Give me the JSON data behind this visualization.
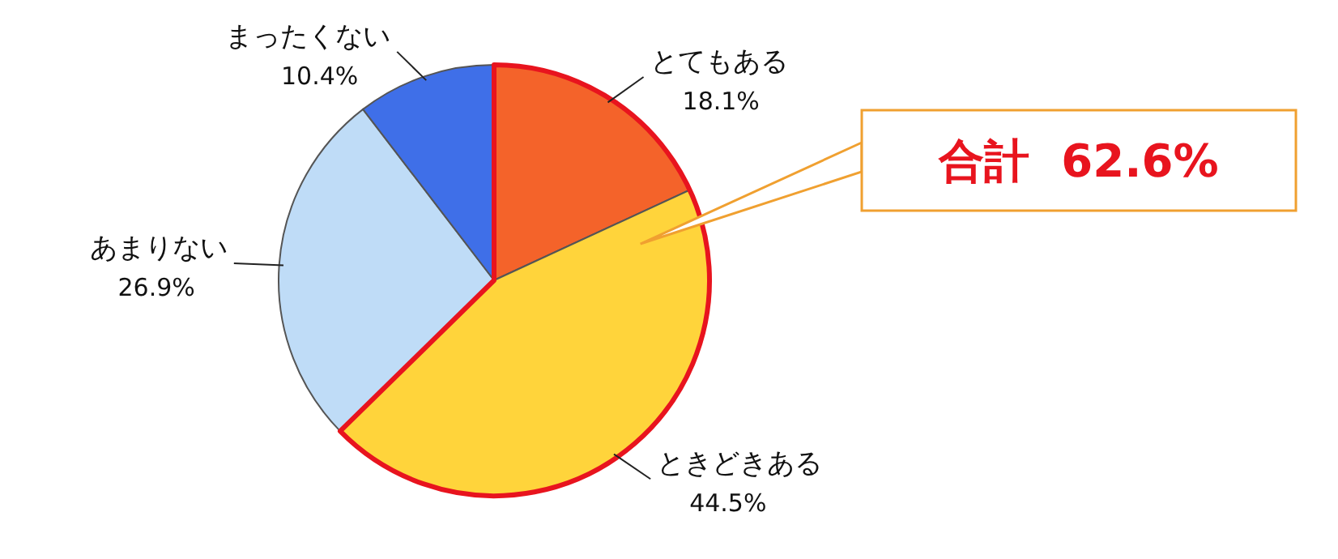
{
  "chart_data": {
    "type": "pie",
    "categories": [
      "とてもある",
      "ときどきある",
      "あまりない",
      "まったくない"
    ],
    "values": [
      18.1,
      44.5,
      26.9,
      10.4
    ],
    "value_labels": [
      "18.1%",
      "44.5%",
      "26.9%",
      "10.4%"
    ],
    "colors": [
      "#f4632a",
      "#ffd43b",
      "#bfdcf7",
      "#3f6fe8"
    ],
    "annotations": [
      "合計  62.6%"
    ]
  }
}
